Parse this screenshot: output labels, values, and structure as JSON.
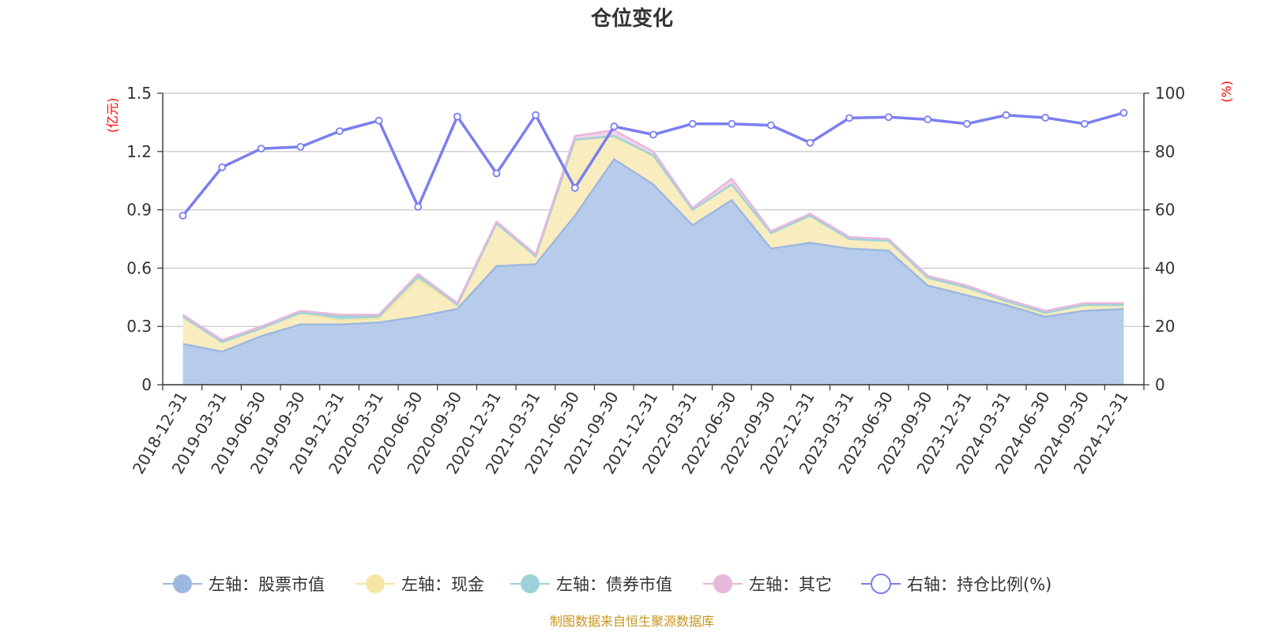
{
  "chart_data": {
    "type": "area",
    "title": "仓位变化",
    "left_axis_unit": "(亿元)",
    "right_axis_unit": "(%)",
    "ylim_left": [
      0,
      1.5
    ],
    "yticks_left": [
      "0",
      "0.3",
      "0.6",
      "0.9",
      "1.2",
      "1.5"
    ],
    "ylim_right": [
      0,
      100
    ],
    "yticks_right": [
      "0",
      "20",
      "40",
      "60",
      "80",
      "100"
    ],
    "grid": true,
    "legend_position": "bottom",
    "categories": [
      "2018-12-31",
      "2019-03-31",
      "2019-06-30",
      "2019-09-30",
      "2019-12-31",
      "2020-03-31",
      "2020-06-30",
      "2020-09-30",
      "2020-12-31",
      "2021-03-31",
      "2021-06-30",
      "2021-09-30",
      "2021-12-31",
      "2022-03-31",
      "2022-06-30",
      "2022-09-30",
      "2022-12-31",
      "2023-03-31",
      "2023-06-30",
      "2023-09-30",
      "2023-12-31",
      "2024-03-31",
      "2024-06-30",
      "2024-09-30",
      "2024-12-31"
    ],
    "series": [
      {
        "name": "左轴：股票市值",
        "axis": "left",
        "stacked": true,
        "color": "#9db8e0",
        "fill": "#b7cceb",
        "values": [
          0.21,
          0.17,
          0.25,
          0.31,
          0.31,
          0.32,
          0.35,
          0.39,
          0.61,
          0.62,
          0.87,
          1.16,
          1.03,
          0.82,
          0.95,
          0.7,
          0.73,
          0.7,
          0.69,
          0.51,
          0.46,
          0.41,
          0.35,
          0.38,
          0.39
        ]
      },
      {
        "name": "左轴：现金",
        "axis": "left",
        "stacked": true,
        "color": "#f7e6a6",
        "fill": "#f9ecbf",
        "values": [
          0.14,
          0.05,
          0.04,
          0.06,
          0.02,
          0.02,
          0.19,
          0.02,
          0.22,
          0.04,
          0.39,
          0.12,
          0.15,
          0.08,
          0.08,
          0.08,
          0.14,
          0.05,
          0.05,
          0.04,
          0.04,
          0.02,
          0.02,
          0.03,
          0.02
        ]
      },
      {
        "name": "左轴：债券市值",
        "axis": "left",
        "stacked": true,
        "color": "#9fd2d8",
        "fill": "#a9dad8",
        "values": [
          0,
          0,
          0,
          0,
          0.02,
          0.01,
          0.02,
          0,
          0,
          0,
          0,
          0,
          0,
          0,
          0,
          0,
          0,
          0,
          0,
          0,
          0,
          0,
          0,
          0,
          0
        ]
      },
      {
        "name": "左轴：其它",
        "axis": "left",
        "stacked": true,
        "color": "#e8b7dc",
        "fill": "#f2d2ea",
        "values": [
          0.01,
          0.01,
          0.01,
          0.01,
          0.01,
          0.01,
          0.01,
          0.01,
          0.01,
          0.01,
          0.02,
          0.03,
          0.02,
          0.01,
          0.03,
          0.01,
          0.01,
          0.01,
          0.01,
          0.01,
          0.01,
          0.01,
          0.01,
          0.01,
          0.01
        ]
      },
      {
        "name": "右轴：持仓比例(%)",
        "axis": "right",
        "stacked": false,
        "color": "#7b7ef0",
        "values": [
          58,
          74.6,
          81,
          81.6,
          87,
          90.6,
          61,
          92,
          72.5,
          92.5,
          67.5,
          88.6,
          85.8,
          89.5,
          89.5,
          89,
          83,
          91.5,
          91.8,
          91,
          89.5,
          92.5,
          91.6,
          89.5,
          93.3
        ]
      }
    ]
  },
  "footer": {
    "source": "制图数据来自恒生聚源数据库"
  }
}
